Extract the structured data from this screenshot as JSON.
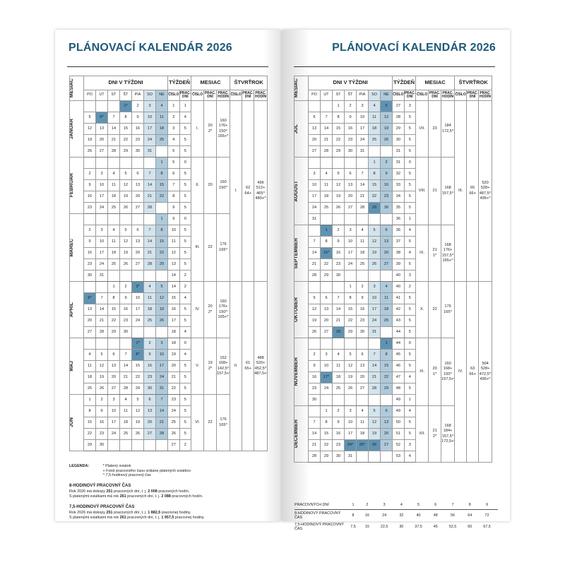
{
  "title": "PLÁNOVACÍ KALENDÁR 2026",
  "colors": {
    "title": "#1f5a7a",
    "saturday": "#d4e4ed",
    "sunday": "#aecadb",
    "holiday": "#5f93b2"
  },
  "header": {
    "month": "MESIAC",
    "days_group": "DNI V TÝŽDNI",
    "week_group": "TÝŽDEŇ",
    "month_group": "MESIAC",
    "quarter_group": "ŠTVRŤROK",
    "days": [
      "PO",
      "UT",
      "ST",
      "ŠT",
      "PIA",
      "SO",
      "NE"
    ],
    "sub": [
      "ČÍSLO",
      "PRAC. DNÍ",
      "ČÍSLO",
      "PRAC. DNÍ",
      "PRAC. HODÍN",
      "ČÍSLO",
      "PRAC. DNÍ",
      "PRAC. HODÍN"
    ]
  },
  "calendar": {
    "months": [
      {
        "name": "JANUÁR",
        "num": "I.",
        "work_days": [
          "20",
          "2*"
        ],
        "work_hours": [
          "160",
          "176+",
          "150^",
          "165+^"
        ],
        "holidays": [
          "1*",
          "6*"
        ],
        "weeks": [
          [
            "",
            "",
            "",
            "1*",
            "2",
            "3",
            "4",
            "1",
            "1"
          ],
          [
            "5",
            "6*",
            "7",
            "8",
            "9",
            "10",
            "11",
            "2",
            "4"
          ],
          [
            "12",
            "13",
            "14",
            "15",
            "16",
            "17",
            "18",
            "3",
            "5"
          ],
          [
            "19",
            "20",
            "21",
            "22",
            "23",
            "24",
            "25",
            "4",
            "5"
          ],
          [
            "26",
            "27",
            "28",
            "29",
            "30",
            "31",
            "",
            "5",
            "5"
          ]
        ]
      },
      {
        "name": "FEBRUÁR",
        "num": "II.",
        "work_days": [
          "20"
        ],
        "work_hours": [
          "160",
          "150^"
        ],
        "holidays": [],
        "weeks": [
          [
            "",
            "",
            "",
            "",
            "",
            "",
            "1",
            "5",
            "0"
          ],
          [
            "2",
            "3",
            "4",
            "5",
            "6",
            "7",
            "8",
            "6",
            "5"
          ],
          [
            "9",
            "10",
            "11",
            "12",
            "13",
            "14",
            "15",
            "7",
            "5"
          ],
          [
            "16",
            "17",
            "18",
            "19",
            "20",
            "21",
            "22",
            "8",
            "5"
          ],
          [
            "23",
            "24",
            "25",
            "26",
            "27",
            "28",
            "",
            "9",
            "5"
          ]
        ]
      },
      {
        "name": "MAREC",
        "num": "III.",
        "work_days": [
          "22"
        ],
        "work_hours": [
          "176",
          "165^"
        ],
        "holidays": [],
        "weeks": [
          [
            "",
            "",
            "",
            "",
            "",
            "",
            "1",
            "9",
            "0"
          ],
          [
            "2",
            "3",
            "4",
            "5",
            "6",
            "7",
            "8",
            "10",
            "5"
          ],
          [
            "9",
            "10",
            "11",
            "12",
            "13",
            "14",
            "15",
            "11",
            "5"
          ],
          [
            "16",
            "17",
            "18",
            "19",
            "20",
            "21",
            "22",
            "12",
            "5"
          ],
          [
            "23",
            "24",
            "25",
            "26",
            "27",
            "28",
            "29",
            "13",
            "5"
          ],
          [
            "30",
            "31",
            "",
            "",
            "",
            "",
            "",
            "14",
            "2"
          ]
        ]
      },
      {
        "name": "APRÍL",
        "num": "IV.",
        "work_days": [
          "20",
          "2*"
        ],
        "work_hours": [
          "160",
          "176+",
          "150^",
          "165+^"
        ],
        "holidays": [
          "3*",
          "6*"
        ],
        "weeks": [
          [
            "",
            "",
            "1",
            "2",
            "3*",
            "4",
            "5",
            "14",
            "2"
          ],
          [
            "6*",
            "7",
            "8",
            "9",
            "10",
            "11",
            "12",
            "15",
            "4"
          ],
          [
            "13",
            "14",
            "15",
            "16",
            "17",
            "18",
            "19",
            "16",
            "5"
          ],
          [
            "20",
            "21",
            "22",
            "23",
            "24",
            "25",
            "26",
            "17",
            "5"
          ],
          [
            "27",
            "28",
            "29",
            "30",
            "",
            "",
            "",
            "18",
            "4"
          ]
        ]
      },
      {
        "name": "MÁJ",
        "num": "V.",
        "work_days": [
          "19",
          "2*"
        ],
        "work_hours": [
          "152",
          "168+",
          "142,5^",
          "157,5+^"
        ],
        "holidays": [
          "1*",
          "8*"
        ],
        "weeks": [
          [
            "",
            "",
            "",
            "",
            "1*",
            "2",
            "3",
            "18",
            "0"
          ],
          [
            "4",
            "5",
            "6",
            "7",
            "8*",
            "9",
            "10",
            "19",
            "4"
          ],
          [
            "11",
            "12",
            "13",
            "14",
            "15",
            "16",
            "17",
            "20",
            "5"
          ],
          [
            "18",
            "19",
            "20",
            "21",
            "22",
            "23",
            "24",
            "21",
            "5"
          ],
          [
            "25",
            "26",
            "27",
            "28",
            "29",
            "30",
            "31",
            "22",
            "5"
          ]
        ]
      },
      {
        "name": "JÚN",
        "num": "VI.",
        "work_days": [
          "22"
        ],
        "work_hours": [
          "176",
          "165^"
        ],
        "holidays": [],
        "weeks": [
          [
            "1",
            "2",
            "3",
            "4",
            "5",
            "6",
            "7",
            "23",
            "5"
          ],
          [
            "8",
            "9",
            "10",
            "11",
            "12",
            "13",
            "14",
            "24",
            "5"
          ],
          [
            "15",
            "16",
            "17",
            "18",
            "19",
            "20",
            "21",
            "25",
            "5"
          ],
          [
            "22",
            "23",
            "24",
            "25",
            "26",
            "27",
            "28",
            "26",
            "5"
          ],
          [
            "29",
            "30",
            "",
            "",
            "",
            "",
            "",
            "27",
            "2"
          ]
        ]
      },
      {
        "name": "JÚL",
        "num": "VII.",
        "work_days": [
          "23"
        ],
        "work_hours": [
          "184",
          "172,5^"
        ],
        "holidays": [
          "5"
        ],
        "weeks": [
          [
            "",
            "",
            "1",
            "2",
            "3",
            "4",
            "5",
            "27",
            "3"
          ],
          [
            "6",
            "7",
            "8",
            "9",
            "10",
            "11",
            "12",
            "28",
            "5"
          ],
          [
            "13",
            "14",
            "15",
            "16",
            "17",
            "18",
            "19",
            "29",
            "5"
          ],
          [
            "20",
            "21",
            "22",
            "23",
            "24",
            "25",
            "26",
            "30",
            "5"
          ],
          [
            "27",
            "28",
            "29",
            "30",
            "31",
            "",
            "",
            "31",
            "5"
          ]
        ]
      },
      {
        "name": "AUGUST",
        "num": "VIII.",
        "work_days": [
          "21"
        ],
        "work_hours": [
          "168",
          "157,5^"
        ],
        "holidays": [
          "29"
        ],
        "weeks": [
          [
            "",
            "",
            "",
            "",
            "",
            "1",
            "2",
            "31",
            "0"
          ],
          [
            "3",
            "4",
            "5",
            "6",
            "7",
            "8",
            "9",
            "32",
            "5"
          ],
          [
            "10",
            "11",
            "12",
            "13",
            "14",
            "15",
            "16",
            "33",
            "5"
          ],
          [
            "17",
            "18",
            "19",
            "20",
            "21",
            "22",
            "23",
            "34",
            "5"
          ],
          [
            "24",
            "25",
            "26",
            "27",
            "28",
            "29",
            "30",
            "35",
            "5"
          ],
          [
            "31",
            "",
            "",
            "",
            "",
            "",
            "",
            "36",
            "1"
          ]
        ]
      },
      {
        "name": "SEPTEMBER",
        "num": "IX.",
        "work_days": [
          "21",
          "1*"
        ],
        "work_hours": [
          "168",
          "176+",
          "157,5^",
          "165+^"
        ],
        "holidays": [
          "1",
          "15*"
        ],
        "weeks": [
          [
            "",
            "1",
            "2",
            "3",
            "4",
            "5",
            "6",
            "36",
            "4"
          ],
          [
            "7",
            "8",
            "9",
            "10",
            "11",
            "12",
            "13",
            "37",
            "5"
          ],
          [
            "14",
            "15*",
            "16",
            "17",
            "18",
            "19",
            "20",
            "38",
            "4"
          ],
          [
            "21",
            "22",
            "23",
            "24",
            "25",
            "26",
            "27",
            "39",
            "5"
          ],
          [
            "28",
            "29",
            "30",
            "",
            "",
            "",
            "",
            "40",
            "3"
          ]
        ]
      },
      {
        "name": "OKTÓBER",
        "num": "X.",
        "work_days": [
          "22"
        ],
        "work_hours": [
          "176",
          "165^"
        ],
        "holidays": [
          "28"
        ],
        "weeks": [
          [
            "",
            "",
            "",
            "1",
            "2",
            "3",
            "4",
            "40",
            "2"
          ],
          [
            "5",
            "6",
            "7",
            "8",
            "9",
            "10",
            "11",
            "41",
            "5"
          ],
          [
            "12",
            "13",
            "14",
            "15",
            "16",
            "17",
            "18",
            "42",
            "5"
          ],
          [
            "19",
            "20",
            "21",
            "22",
            "23",
            "24",
            "25",
            "43",
            "5"
          ],
          [
            "26",
            "27",
            "28",
            "29",
            "30",
            "31",
            "",
            "44",
            "5"
          ]
        ]
      },
      {
        "name": "NOVEMBER",
        "num": "XI.",
        "work_days": [
          "20",
          "1*"
        ],
        "work_hours": [
          "160",
          "168+",
          "150^",
          "157,5+^"
        ],
        "holidays": [
          "1",
          "17*"
        ],
        "weeks": [
          [
            "",
            "",
            "",
            "",
            "",
            "",
            "1",
            "44",
            "0"
          ],
          [
            "2",
            "3",
            "4",
            "5",
            "6",
            "7",
            "8",
            "45",
            "5"
          ],
          [
            "9",
            "10",
            "11",
            "12",
            "13",
            "14",
            "15",
            "46",
            "5"
          ],
          [
            "16",
            "17*",
            "18",
            "19",
            "20",
            "21",
            "22",
            "47",
            "4"
          ],
          [
            "23",
            "24",
            "25",
            "26",
            "27",
            "28",
            "29",
            "48",
            "5"
          ],
          [
            "30",
            "",
            "",
            "",
            "",
            "",
            "",
            "49",
            "1"
          ]
        ]
      },
      {
        "name": "DECEMBER",
        "num": "XII.",
        "work_days": [
          "21",
          "2*"
        ],
        "work_hours": [
          "168",
          "184+",
          "157,5^",
          "172,5+^"
        ],
        "holidays": [
          "24*",
          "25*",
          "26"
        ],
        "weeks": [
          [
            "",
            "1",
            "2",
            "3",
            "4",
            "5",
            "6",
            "49",
            "4"
          ],
          [
            "7",
            "8",
            "9",
            "10",
            "11",
            "12",
            "13",
            "50",
            "5"
          ],
          [
            "14",
            "15",
            "16",
            "17",
            "18",
            "19",
            "20",
            "51",
            "5"
          ],
          [
            "21",
            "22",
            "23",
            "24*",
            "25*",
            "26",
            "27",
            "52",
            "3"
          ],
          [
            "28",
            "29",
            "30",
            "31",
            "",
            "",
            "",
            "53",
            "4"
          ]
        ]
      }
    ],
    "quarters": [
      {
        "num": "I.",
        "work_days": [
          "62",
          "64+"
        ],
        "work_hours": [
          "496",
          "512+",
          "465^",
          "480+^"
        ]
      },
      {
        "num": "II.",
        "work_days": [
          "61",
          "65+"
        ],
        "work_hours": [
          "488",
          "520+",
          "452,5^",
          "487,5+^"
        ]
      },
      {
        "num": "III.",
        "work_days": [
          "65",
          "66+"
        ],
        "work_hours": [
          "520",
          "528+",
          "487,5^",
          "495+^"
        ]
      },
      {
        "num": "IV.",
        "work_days": [
          "63",
          "66+"
        ],
        "work_hours": [
          "504",
          "528+",
          "472,5^",
          "495+^"
        ]
      }
    ]
  },
  "legend": {
    "label": "LEGENDA:",
    "items": [
      "* Platený sviatok",
      "+ Fond pracovného času vrátane platených sviatkov",
      "^ 7,5-hodinový pracovný čas"
    ],
    "sections": [
      {
        "heading": "8-HODINOVÝ PRACOVNÝ ČAS",
        "lines": [
          [
            "Rok 2026 má dokopy ",
            "251",
            " pracovných dní, t. j. ",
            "2 008",
            " pracovných hodín."
          ],
          [
            "S platenými sviatkami má rok ",
            "261",
            " pracovných dní, t. j. ",
            "2 088",
            " pracovných hodín."
          ]
        ]
      },
      {
        "heading": "7,5-HODINOVÝ PRACOVNÝ ČAS",
        "lines": [
          [
            "Rok 2026 má dokopy ",
            "251",
            " pracovných dní, t. j. ",
            "1 882,5",
            " pracovnej hodiny."
          ],
          [
            "S platenými sviatkami má rok ",
            "261",
            " pracovných dní, t. j. ",
            "1 957,5",
            " pracovnej hodiny."
          ]
        ]
      }
    ]
  },
  "summary_table": {
    "header": [
      "PRACOVNÝCH DNÍ",
      "1",
      "2",
      "3",
      "4",
      "5",
      "6",
      "7",
      "8",
      "9"
    ],
    "rows": [
      [
        "8-HODINOVÝ PRACOVNÝ ČAS",
        "8",
        "16",
        "24",
        "32",
        "40",
        "48",
        "56",
        "64",
        "72"
      ],
      [
        "7,5-HODINOVÝ PRACOVNÝ ČAS",
        "7,5",
        "15",
        "22,5",
        "30",
        "37,5",
        "45",
        "52,5",
        "60",
        "67,5"
      ]
    ]
  }
}
